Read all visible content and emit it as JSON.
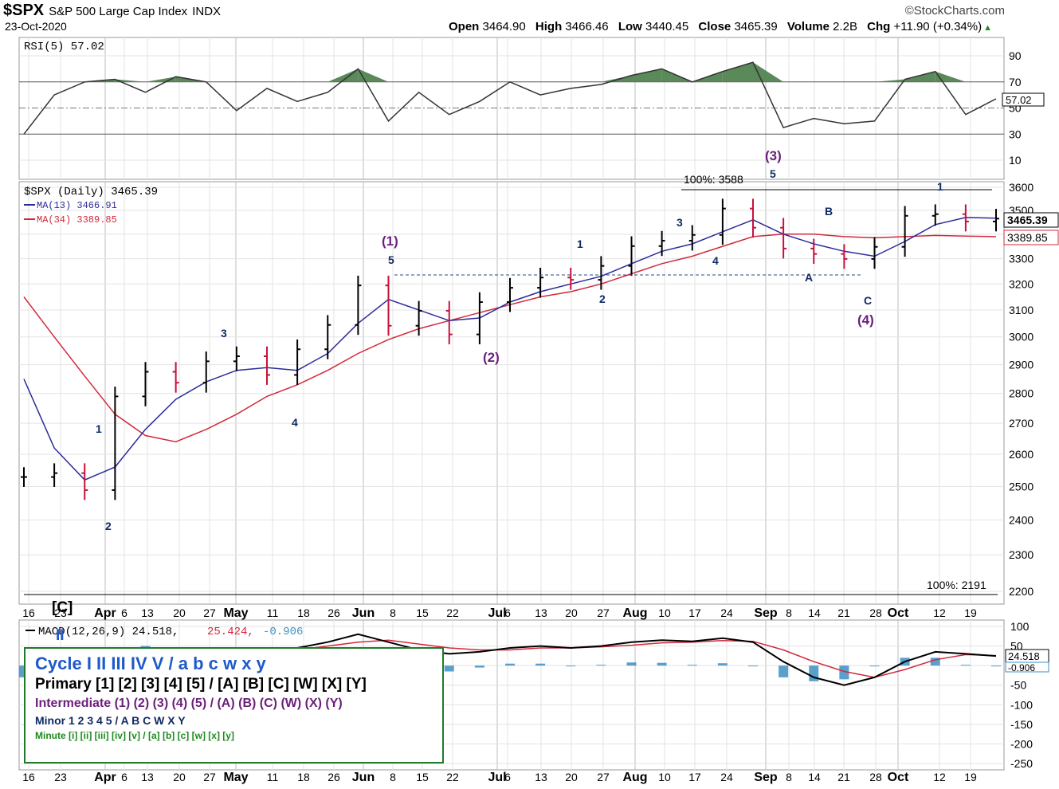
{
  "header": {
    "symbol": "$SPX",
    "name": "S&P 500 Large Cap Index",
    "exchange": "INDX",
    "date": "23-Oct-2020",
    "brand": "©StockCharts.com",
    "open_label": "Open",
    "open": "3464.90",
    "high_label": "High",
    "high": "3466.46",
    "low_label": "Low",
    "low": "3440.45",
    "close_label": "Close",
    "close": "3465.39",
    "volume_label": "Volume",
    "volume": "2.2B",
    "chg_label": "Chg",
    "chg": "+11.90 (+0.34%)",
    "chg_arrow": "▲"
  },
  "rsi_panel": {
    "label": "RSI(5) 57.02",
    "current": "57.02",
    "ticks": [
      "90",
      "70",
      "50",
      "30",
      "10"
    ]
  },
  "price_panel": {
    "label": "$SPX (Daily) 3465.39",
    "ma13_label": "MA(13) 3466.91",
    "ma34_label": "MA(34) 3389.85",
    "price_tag": "3465.39",
    "ma34_tag": "3389.85",
    "ticks": [
      "3600",
      "3500",
      "3400",
      "3300",
      "3200",
      "3100",
      "3000",
      "2900",
      "2800",
      "2700",
      "2600",
      "2500",
      "2400",
      "2300",
      "2200"
    ],
    "fib_top_label": "100%: 3588",
    "fib_bottom_label": "100%: 2191"
  },
  "macd_panel": {
    "label_main": "MACD(12,26,9) 24.518,",
    "label_signal": "25.424,",
    "label_hist": "-0.906",
    "tag_macd": "24.518",
    "tag_hist": "-0.906",
    "ticks": [
      "100",
      "50",
      "0",
      "-50",
      "-100",
      "-150",
      "-200",
      "-250"
    ]
  },
  "wave_labels": [
    {
      "text": "[C]",
      "color": "#000000"
    },
    {
      "text": "II",
      "color": "#1f5ac8"
    },
    {
      "text": "1",
      "color": "#102a66"
    },
    {
      "text": "2",
      "color": "#102a66"
    },
    {
      "text": "3",
      "color": "#102a66"
    },
    {
      "text": "4",
      "color": "#102a66"
    },
    {
      "text": "(1)",
      "color": "#6a1f7a"
    },
    {
      "text": "5",
      "color": "#102a66"
    },
    {
      "text": "(2)",
      "color": "#6a1f7a"
    },
    {
      "text": "1",
      "color": "#102a66"
    },
    {
      "text": "2",
      "color": "#102a66"
    },
    {
      "text": "3",
      "color": "#102a66"
    },
    {
      "text": "4",
      "color": "#102a66"
    },
    {
      "text": "(3)",
      "color": "#6a1f7a"
    },
    {
      "text": "5",
      "color": "#102a66"
    },
    {
      "text": "A",
      "color": "#102a66"
    },
    {
      "text": "B",
      "color": "#102a66"
    },
    {
      "text": "C",
      "color": "#102a66"
    },
    {
      "text": "(4)",
      "color": "#6a1f7a"
    },
    {
      "text": "1",
      "color": "#102a66"
    }
  ],
  "legend": {
    "cycle": "Cycle I II III IV V / a b c w x y",
    "primary": "Primary [1] [2] [3] [4] [5] / [A] [B] [C] [W] [X] [Y]",
    "intermediate": "Intermediate (1) (2) (3) (4) (5) / (A) (B) (C) (W) (X) (Y)",
    "minor": "Minor 1 2 3 4 5 / A B C W X Y",
    "minute": "Minute [i] [ii] [iii] [iv] [v] / [a] [b] [c] [w] [x] [y]"
  },
  "x_axis": {
    "labels": [
      "16",
      "23",
      "Apr",
      "6",
      "13",
      "20",
      "27",
      "May",
      "11",
      "18",
      "26",
      "Jun",
      "8",
      "15",
      "22",
      "Jul",
      "6",
      "13",
      "20",
      "27",
      "Aug",
      "10",
      "17",
      "24",
      "Sep",
      "8",
      "14",
      "21",
      "28",
      "Oct",
      "12",
      "19"
    ]
  },
  "colors": {
    "up_bar": "#000000",
    "down_bar": "#c8103c",
    "ma13": "#2b2b9a",
    "ma34": "#d2293c",
    "rsi_fill": "#5a8a5a",
    "macd_hist": "#3d8fc4"
  },
  "chart_data": {
    "type": "line",
    "title": "$SPX S&P 500 Large Cap Index",
    "xlabel": "",
    "ylabel": "",
    "ylim": [
      2191,
      3600
    ],
    "x": [
      "2020-03-16",
      "2020-03-23",
      "2020-03-30",
      "2020-04-06",
      "2020-04-13",
      "2020-04-20",
      "2020-04-27",
      "2020-05-04",
      "2020-05-11",
      "2020-05-18",
      "2020-05-26",
      "2020-06-01",
      "2020-06-08",
      "2020-06-15",
      "2020-06-22",
      "2020-06-29",
      "2020-07-06",
      "2020-07-13",
      "2020-07-20",
      "2020-07-27",
      "2020-08-03",
      "2020-08-10",
      "2020-08-17",
      "2020-08-24",
      "2020-08-31",
      "2020-09-08",
      "2020-09-14",
      "2020-09-21",
      "2020-09-28",
      "2020-10-05",
      "2020-10-12",
      "2020-10-19",
      "2020-10-23"
    ],
    "series": [
      {
        "name": "$SPX (Daily)",
        "values": [
          2529,
          2541,
          2489,
          2790,
          2875,
          2837,
          2912,
          2930,
          2864,
          2955,
          3044,
          3194,
          3041,
          3097,
          3009,
          3130,
          3185,
          3225,
          3216,
          3271,
          3351,
          3373,
          3397,
          3508,
          3427,
          3341,
          3319,
          3299,
          3348,
          3477,
          3484,
          3453,
          3465
        ]
      },
      {
        "name": "MA(13)",
        "values": [
          2850,
          2620,
          2520,
          2560,
          2680,
          2780,
          2840,
          2880,
          2890,
          2880,
          2940,
          3050,
          3140,
          3100,
          3060,
          3070,
          3130,
          3170,
          3200,
          3230,
          3280,
          3330,
          3360,
          3410,
          3460,
          3400,
          3360,
          3330,
          3310,
          3370,
          3440,
          3470,
          3467
        ]
      },
      {
        "name": "MA(34)",
        "values": [
          3150,
          3000,
          2860,
          2730,
          2660,
          2640,
          2680,
          2730,
          2790,
          2830,
          2880,
          2940,
          2990,
          3030,
          3060,
          3090,
          3120,
          3150,
          3170,
          3200,
          3240,
          3280,
          3310,
          3350,
          3390,
          3400,
          3400,
          3390,
          3385,
          3390,
          3395,
          3392,
          3390
        ]
      }
    ],
    "rsi": {
      "name": "RSI(5)",
      "ylim": [
        0,
        100
      ],
      "values": [
        30,
        60,
        70,
        72,
        62,
        74,
        70,
        48,
        65,
        55,
        62,
        80,
        40,
        62,
        45,
        55,
        70,
        60,
        65,
        68,
        75,
        80,
        70,
        78,
        85,
        35,
        42,
        38,
        40,
        72,
        78,
        45,
        57
      ]
    },
    "macd": {
      "name": "MACD(12,26,9)",
      "ylim": [
        -250,
        100
      ],
      "macd": [
        -150,
        -180,
        -140,
        -60,
        -10,
        20,
        35,
        45,
        40,
        45,
        60,
        80,
        60,
        40,
        30,
        35,
        45,
        50,
        45,
        50,
        60,
        65,
        62,
        70,
        60,
        10,
        -30,
        -50,
        -30,
        10,
        35,
        30,
        24.518
      ],
      "signal": [
        -120,
        -150,
        -140,
        -100,
        -60,
        -20,
        10,
        25,
        35,
        40,
        50,
        60,
        65,
        55,
        45,
        40,
        40,
        45,
        45,
        48,
        52,
        58,
        60,
        64,
        62,
        40,
        10,
        -15,
        -30,
        -10,
        15,
        28,
        25.424
      ]
    }
  }
}
